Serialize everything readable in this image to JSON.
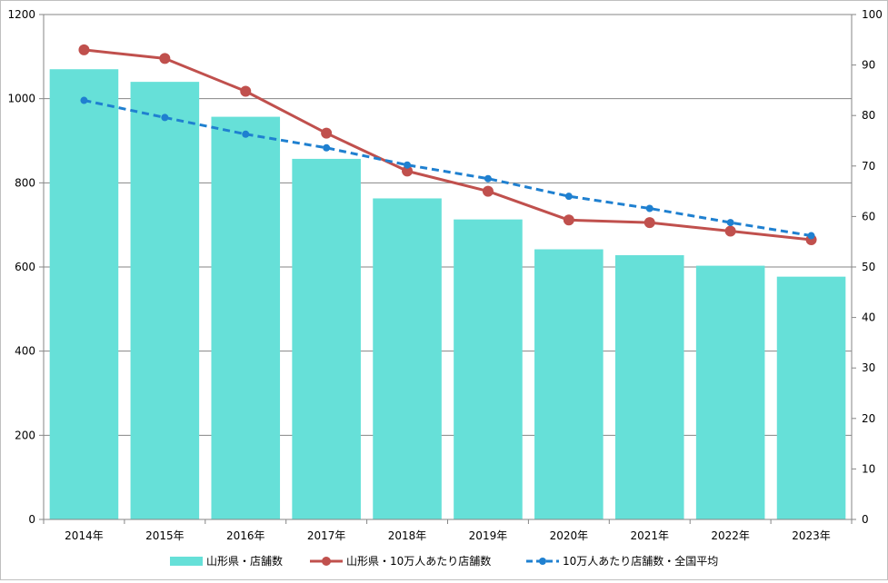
{
  "chart_data": {
    "type": "bar",
    "categories": [
      "2014年",
      "2015年",
      "2016年",
      "2017年",
      "2018年",
      "2019年",
      "2020年",
      "2021年",
      "2022年",
      "2023年"
    ],
    "left_axis": {
      "min": 0,
      "max": 1200,
      "step": 200,
      "ticks": [
        "0",
        "200",
        "400",
        "600",
        "800",
        "1000",
        "1200"
      ]
    },
    "right_axis": {
      "min": 0,
      "max": 100,
      "step": 10,
      "ticks": [
        "0",
        "10",
        "20",
        "30",
        "40",
        "50",
        "60",
        "70",
        "80",
        "90",
        "100"
      ]
    },
    "grid": true,
    "legend_position": "bottom",
    "series": [
      {
        "name": "山形県・店舗数",
        "kind": "bar",
        "axis": "left",
        "color": "#66e0d8",
        "values": [
          1070,
          1040,
          957,
          857,
          763,
          713,
          642,
          628,
          603,
          577
        ]
      },
      {
        "name": "山形県・10万人あたり店舗数",
        "kind": "line",
        "axis": "right",
        "color": "#c0504d",
        "values": [
          93.0,
          91.3,
          84.8,
          76.5,
          69.0,
          65.0,
          59.3,
          58.8,
          57.1,
          55.4
        ]
      },
      {
        "name": "10万人あたり店舗数・全国平均",
        "kind": "dashed-line",
        "axis": "right",
        "color": "#1f80d0",
        "values": [
          83.0,
          79.6,
          76.3,
          73.6,
          70.2,
          67.5,
          64.0,
          61.6,
          58.8,
          56.2
        ]
      }
    ]
  }
}
